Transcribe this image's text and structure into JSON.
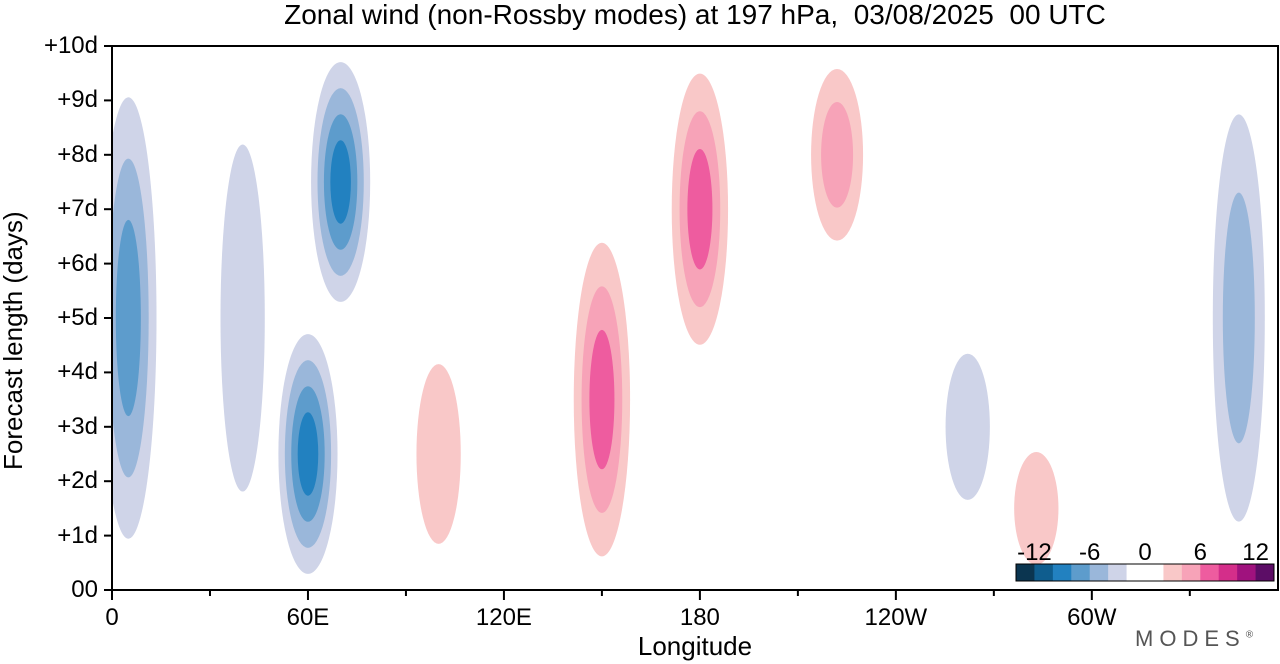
{
  "chart_data": {
    "type": "heatmap",
    "title": "Zonal wind (non-Rossby modes) at 197 hPa,  03/08/2025  00 UTC",
    "xlabel": "Longitude",
    "ylabel": "Forecast length (days)",
    "x_ticks": [
      "0",
      "60E",
      "120E",
      "180",
      "120W",
      "60W"
    ],
    "y_ticks": [
      "00",
      "+1d",
      "+2d",
      "+3d",
      "+4d",
      "+5d",
      "+6d",
      "+7d",
      "+8d",
      "+9d",
      "+10d"
    ],
    "x_range_deg_east": [
      0,
      357
    ],
    "y_range_days": [
      0,
      10
    ],
    "colorbar": {
      "tick_labels": [
        "-12",
        "-6",
        "0",
        "6",
        "12"
      ],
      "levels": [
        -14,
        -12,
        -10,
        -8,
        -6,
        -4,
        -2,
        0,
        2,
        4,
        6,
        8,
        10,
        12,
        14
      ],
      "colors": [
        "#0b3550",
        "#0f5d8e",
        "#2281c0",
        "#5d9ccc",
        "#9ab7da",
        "#cfd4e8",
        "#ffffff",
        "#ffffff",
        "#f9c8c8",
        "#f7a3b8",
        "#ee5c9f",
        "#d42e8a",
        "#a0127e",
        "#5c0d66"
      ],
      "placement": "bottom-right"
    },
    "features": [
      {
        "lon": 5,
        "day_start": 0,
        "day_end": 10,
        "mean": -7
      },
      {
        "lon": 40,
        "day_start": 0,
        "day_end": 10,
        "mean": -3
      },
      {
        "lon": 60,
        "day_start": 0,
        "day_end": 5,
        "mean": -10
      },
      {
        "lon": 70,
        "day_start": 5,
        "day_end": 10,
        "mean": -10
      },
      {
        "lon": 100,
        "day_start": 0,
        "day_end": 5,
        "mean": 3
      },
      {
        "lon": 150,
        "day_start": 0,
        "day_end": 7,
        "mean": 7
      },
      {
        "lon": 180,
        "day_start": 4,
        "day_end": 10,
        "mean": 7
      },
      {
        "lon": 222,
        "day_start": 6,
        "day_end": 10,
        "mean": 5
      },
      {
        "lon": 262,
        "day_start": 1,
        "day_end": 5,
        "mean": -4
      },
      {
        "lon": 283,
        "day_start": 0,
        "day_end": 3,
        "mean": 4
      },
      {
        "lon": 345,
        "day_start": 0,
        "day_end": 10,
        "mean": -6
      }
    ]
  },
  "brand": "MODES"
}
